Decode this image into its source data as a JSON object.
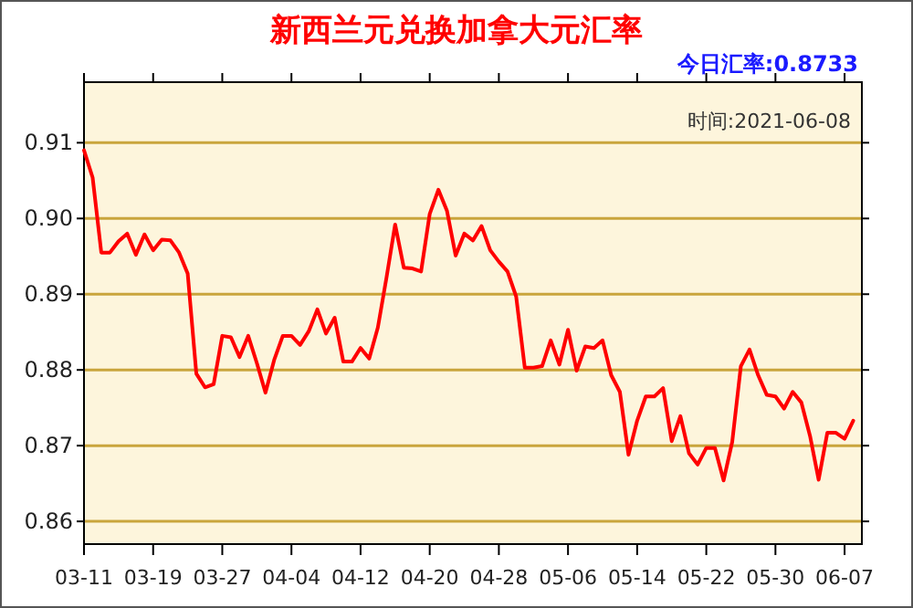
{
  "chart_data": {
    "type": "line",
    "title": "新西兰元兑换加拿大元汇率",
    "annotations": [
      "今日汇率:0.8733",
      "时间:2021-06-08"
    ],
    "x": [
      "2021-03-11",
      "2021-03-12",
      "2021-03-13",
      "2021-03-14",
      "2021-03-15",
      "2021-03-16",
      "2021-03-17",
      "2021-03-18",
      "2021-03-19",
      "2021-03-20",
      "2021-03-21",
      "2021-03-22",
      "2021-03-23",
      "2021-03-24",
      "2021-03-25",
      "2021-03-26",
      "2021-03-27",
      "2021-03-28",
      "2021-03-29",
      "2021-03-30",
      "2021-03-31",
      "2021-04-01",
      "2021-04-02",
      "2021-04-03",
      "2021-04-04",
      "2021-04-05",
      "2021-04-06",
      "2021-04-07",
      "2021-04-08",
      "2021-04-09",
      "2021-04-10",
      "2021-04-11",
      "2021-04-12",
      "2021-04-13",
      "2021-04-14",
      "2021-04-15",
      "2021-04-16",
      "2021-04-17",
      "2021-04-18",
      "2021-04-19",
      "2021-04-20",
      "2021-04-21",
      "2021-04-22",
      "2021-04-23",
      "2021-04-24",
      "2021-04-25",
      "2021-04-26",
      "2021-04-27",
      "2021-04-28",
      "2021-04-29",
      "2021-04-30",
      "2021-05-01",
      "2021-05-02",
      "2021-05-03",
      "2021-05-04",
      "2021-05-05",
      "2021-05-06",
      "2021-05-07",
      "2021-05-08",
      "2021-05-09",
      "2021-05-10",
      "2021-05-11",
      "2021-05-12",
      "2021-05-13",
      "2021-05-14",
      "2021-05-15",
      "2021-05-16",
      "2021-05-17",
      "2021-05-18",
      "2021-05-19",
      "2021-05-20",
      "2021-05-21",
      "2021-05-22",
      "2021-05-23",
      "2021-05-24",
      "2021-05-25",
      "2021-05-26",
      "2021-05-27",
      "2021-05-28",
      "2021-05-29",
      "2021-05-30",
      "2021-05-31",
      "2021-06-01",
      "2021-06-02",
      "2021-06-03",
      "2021-06-04",
      "2021-06-05",
      "2021-06-06",
      "2021-06-07",
      "2021-06-08"
    ],
    "series": [
      {
        "color": "#ff0000",
        "values": [
          0.909,
          0.9054,
          0.8955,
          0.8955,
          0.897,
          0.898,
          0.8952,
          0.8979,
          0.8958,
          0.8972,
          0.8971,
          0.8955,
          0.8927,
          0.8795,
          0.8777,
          0.8781,
          0.8845,
          0.8843,
          0.8817,
          0.8845,
          0.8809,
          0.877,
          0.8813,
          0.8845,
          0.8845,
          0.8833,
          0.8851,
          0.888,
          0.8848,
          0.8869,
          0.8811,
          0.8811,
          0.8829,
          0.8815,
          0.8856,
          0.8922,
          0.8992,
          0.8935,
          0.8934,
          0.893,
          0.9006,
          0.9038,
          0.901,
          0.8951,
          0.898,
          0.8971,
          0.899,
          0.8958,
          0.8943,
          0.893,
          0.8897,
          0.8803,
          0.8803,
          0.8805,
          0.8839,
          0.8807,
          0.8853,
          0.8799,
          0.8831,
          0.8829,
          0.8839,
          0.8793,
          0.8771,
          0.8688,
          0.8733,
          0.8765,
          0.8765,
          0.8776,
          0.8706,
          0.8739,
          0.869,
          0.8675,
          0.8697,
          0.8697,
          0.8654,
          0.8705,
          0.8805,
          0.8827,
          0.8793,
          0.8767,
          0.8765,
          0.8749,
          0.8771,
          0.8757,
          0.8713,
          0.8655,
          0.8717,
          0.8717,
          0.8709,
          0.8733
        ]
      }
    ],
    "xlim": [
      "2021-03-11",
      "2021-06-09"
    ],
    "xticks": [
      {
        "value": "2021-03-11",
        "label": "03-11"
      },
      {
        "value": "2021-03-19",
        "label": "03-19"
      },
      {
        "value": "2021-03-27",
        "label": "03-27"
      },
      {
        "value": "2021-04-04",
        "label": "04-04"
      },
      {
        "value": "2021-04-12",
        "label": "04-12"
      },
      {
        "value": "2021-04-20",
        "label": "04-20"
      },
      {
        "value": "2021-04-28",
        "label": "04-28"
      },
      {
        "value": "2021-05-06",
        "label": "05-06"
      },
      {
        "value": "2021-05-14",
        "label": "05-14"
      },
      {
        "value": "2021-05-22",
        "label": "05-22"
      },
      {
        "value": "2021-05-30",
        "label": "05-30"
      },
      {
        "value": "2021-06-07",
        "label": "06-07"
      }
    ],
    "ylim": [
      0.857,
      0.918
    ],
    "yticks": [
      {
        "value": 0.86,
        "label": "0.86"
      },
      {
        "value": 0.87,
        "label": "0.87"
      },
      {
        "value": 0.88,
        "label": "0.88"
      },
      {
        "value": 0.89,
        "label": "0.89"
      },
      {
        "value": 0.9,
        "label": "0.90"
      },
      {
        "value": 0.91,
        "label": "0.91"
      }
    ],
    "grid": "y",
    "marker": "none",
    "line_style": "solid"
  }
}
